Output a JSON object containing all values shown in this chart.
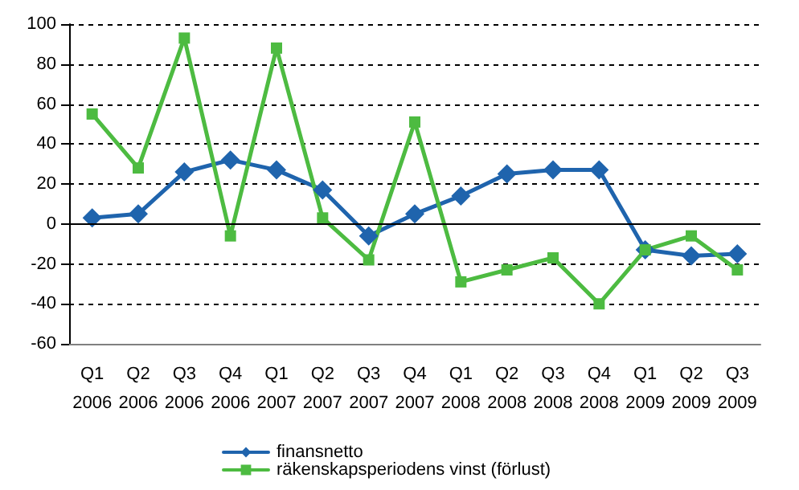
{
  "chart_data": {
    "type": "line",
    "categories": [
      "Q1\n2006",
      "Q2\n2006",
      "Q3\n2006",
      "Q4\n2006",
      "Q1\n2007",
      "Q2\n2007",
      "Q3\n2007",
      "Q4\n2007",
      "Q1\n2008",
      "Q2\n2008",
      "Q3\n2008",
      "Q4\n2008",
      "Q1\n2009",
      "Q2\n2009",
      "Q3\n2009"
    ],
    "series": [
      {
        "name": "finansnetto",
        "color": "#1f64ad",
        "marker": "diamond",
        "values": [
          3,
          5,
          26,
          32,
          27,
          17,
          -6,
          5,
          14,
          25,
          27,
          27,
          -13,
          -16,
          -15
        ]
      },
      {
        "name": "räkenskapsperiodens vinst (förlust)",
        "color": "#4dbb41",
        "marker": "square",
        "values": [
          55,
          28,
          93,
          -6,
          88,
          3,
          -18,
          51,
          -29,
          -23,
          -17,
          -40,
          -13,
          -6,
          -23
        ]
      }
    ],
    "ylim": [
      -60,
      100
    ],
    "yticks": [
      -60,
      -40,
      -20,
      0,
      20,
      40,
      60,
      80,
      100
    ],
    "grid": "y",
    "legend": "bottom",
    "line_style": "solid"
  }
}
